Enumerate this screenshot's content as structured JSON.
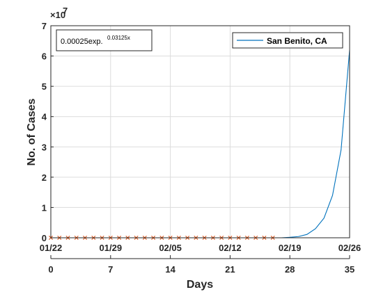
{
  "chart_data": {
    "type": "line",
    "ylabel": "No. of Cases",
    "xlabel": "Days",
    "y_exponent_base": "×10",
    "y_exponent_power": "7",
    "y_ticks": [
      0,
      1,
      2,
      3,
      4,
      5,
      6,
      7
    ],
    "ylim": [
      0,
      70000000
    ],
    "xlim": [
      0,
      35
    ],
    "x_ticks_days": [
      0,
      7,
      14,
      21,
      28,
      35
    ],
    "date_ticks": [
      {
        "day": 0,
        "label": "01/22"
      },
      {
        "day": 7,
        "label": "01/29"
      },
      {
        "day": 14,
        "label": "02/05"
      },
      {
        "day": 21,
        "label": "02/12"
      },
      {
        "day": 28,
        "label": "02/19"
      },
      {
        "day": 35,
        "label": "02/26"
      }
    ],
    "grid": true,
    "legend_position": "top-right",
    "annotation": {
      "text": "0.00025exp.",
      "superscript": "0.03125x"
    },
    "series": [
      {
        "name": "San Benito, CA",
        "kind": "line",
        "color": "#0072BD",
        "x": [
          0,
          1,
          2,
          3,
          4,
          5,
          6,
          7,
          8,
          9,
          10,
          11,
          12,
          13,
          14,
          15,
          16,
          17,
          18,
          19,
          20,
          21,
          22,
          23,
          24,
          25,
          26,
          27,
          28,
          29,
          30,
          31,
          32,
          33,
          34,
          35
        ],
        "y": [
          0,
          0,
          0,
          0,
          0,
          0,
          0,
          0,
          0,
          0,
          0,
          0,
          0,
          0,
          0,
          0,
          0,
          0,
          0,
          0,
          0,
          0,
          0,
          0,
          0,
          0,
          0,
          0,
          150000,
          400000,
          1100000,
          3000000,
          6500000,
          14000000,
          29000000,
          62000000
        ]
      },
      {
        "name": "",
        "kind": "markers",
        "marker": "x",
        "color": "#D95319",
        "x": [
          0,
          1,
          2,
          3,
          4,
          5,
          6,
          7,
          8,
          9,
          10,
          11,
          12,
          13,
          14,
          15,
          16,
          17,
          18,
          19,
          20,
          21,
          22,
          23,
          24,
          25,
          26
        ],
        "y": [
          0,
          0,
          0,
          0,
          0,
          0,
          0,
          0,
          0,
          0,
          0,
          0,
          0,
          0,
          0,
          0,
          0,
          0,
          0,
          0,
          0,
          0,
          0,
          0,
          0,
          0,
          0
        ]
      }
    ]
  }
}
